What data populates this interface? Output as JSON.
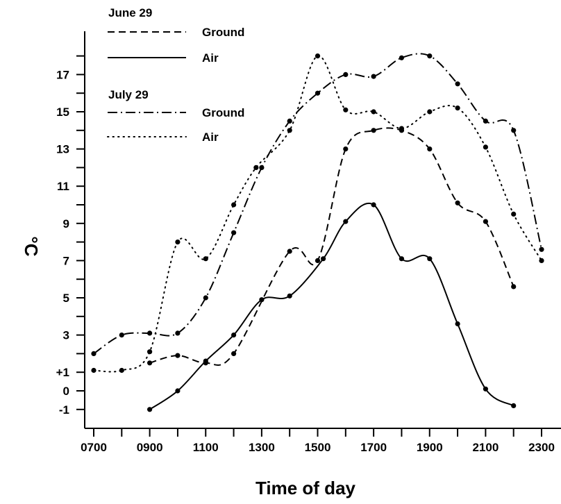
{
  "chart_data": {
    "type": "line",
    "title": "",
    "xlabel": "Time of day",
    "ylabel": "°C",
    "x_tick_values": [
      700,
      900,
      1100,
      1300,
      1500,
      1700,
      1900,
      2100,
      2300
    ],
    "x_tick_labels": [
      "0700",
      "0900",
      "1100",
      "1300",
      "1500",
      "1700",
      "1900",
      "2100",
      "2300"
    ],
    "x_minor_ticks": [
      800,
      1000,
      1200,
      1400,
      1600,
      1800,
      2000,
      2200
    ],
    "y_tick_values": [
      -1,
      0,
      1,
      3,
      5,
      7,
      9,
      11,
      13,
      15,
      17
    ],
    "y_tick_labels": [
      "-1",
      "0",
      "+1",
      "3",
      "5",
      "7",
      "9",
      "11",
      "13",
      "15",
      "17"
    ],
    "y_minor_ticks": [
      2,
      4,
      6,
      8,
      10,
      12,
      14,
      16,
      18
    ],
    "xlim": [
      620,
      2380
    ],
    "ylim": [
      -3,
      20
    ],
    "grid": false,
    "legend_placement": "top-left",
    "legend_groups": [
      {
        "title": "June 29",
        "entries": [
          {
            "label": "Ground",
            "series": 0
          },
          {
            "label": "Air",
            "series": 1
          }
        ]
      },
      {
        "title": "July 29",
        "entries": [
          {
            "label": "Ground",
            "series": 2
          },
          {
            "label": "Air",
            "series": 3
          }
        ]
      }
    ],
    "series": [
      {
        "dash": "dashed",
        "points": [
          [
            900,
            1.5
          ],
          [
            1000,
            1.9
          ],
          [
            1100,
            1.5
          ],
          [
            1200,
            2.0
          ],
          [
            1400,
            7.5
          ],
          [
            1500,
            7.0
          ],
          [
            1600,
            13.0
          ],
          [
            1700,
            14.0
          ],
          [
            1800,
            14.0
          ],
          [
            1900,
            13.0
          ],
          [
            2000,
            10.1
          ],
          [
            2100,
            9.1
          ],
          [
            2200,
            5.6
          ]
        ]
      },
      {
        "dash": "solid",
        "points": [
          [
            900,
            -1.0
          ],
          [
            1000,
            0.0
          ],
          [
            1100,
            1.6
          ],
          [
            1200,
            3.0
          ],
          [
            1300,
            4.9
          ],
          [
            1400,
            5.1
          ],
          [
            1520,
            7.1
          ],
          [
            1600,
            9.1
          ],
          [
            1700,
            10.0
          ],
          [
            1800,
            7.1
          ],
          [
            1900,
            7.1
          ],
          [
            2000,
            3.6
          ],
          [
            2100,
            0.1
          ],
          [
            2200,
            -0.8
          ]
        ]
      },
      {
        "dash": "dashdot",
        "points": [
          [
            700,
            2.0
          ],
          [
            800,
            3.0
          ],
          [
            900,
            3.1
          ],
          [
            1000,
            3.1
          ],
          [
            1100,
            5.0
          ],
          [
            1200,
            8.5
          ],
          [
            1300,
            12.0
          ],
          [
            1400,
            14.5
          ],
          [
            1500,
            16.0
          ],
          [
            1600,
            17.0
          ],
          [
            1700,
            16.9
          ],
          [
            1800,
            17.9
          ],
          [
            1900,
            18.0
          ],
          [
            2000,
            16.5
          ],
          [
            2100,
            14.5
          ],
          [
            2200,
            14.0
          ],
          [
            2300,
            7.6
          ]
        ]
      },
      {
        "dash": "dotted",
        "points": [
          [
            700,
            1.1
          ],
          [
            800,
            1.1
          ],
          [
            900,
            2.1
          ],
          [
            1000,
            8.0
          ],
          [
            1100,
            7.1
          ],
          [
            1200,
            10.0
          ],
          [
            1280,
            12.0
          ],
          [
            1400,
            14.0
          ],
          [
            1500,
            18.0
          ],
          [
            1600,
            15.1
          ],
          [
            1700,
            15.0
          ],
          [
            1800,
            14.1
          ],
          [
            1900,
            15.0
          ],
          [
            2000,
            15.2
          ],
          [
            2100,
            13.1
          ],
          [
            2200,
            9.5
          ],
          [
            2300,
            7.0
          ]
        ]
      }
    ]
  }
}
